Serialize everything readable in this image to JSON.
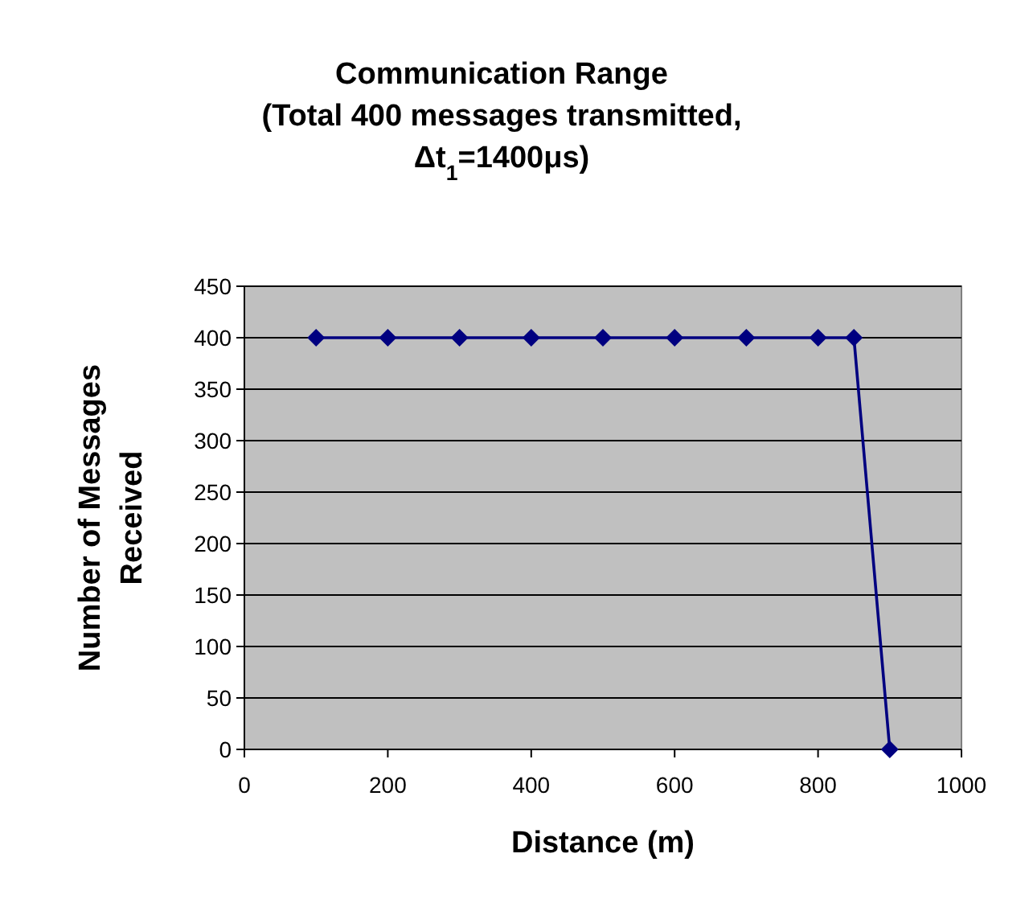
{
  "chart_data": {
    "type": "line",
    "title": "Communication Range\n(Total 400 messages transmitted,\nΔt$_{1}$=1400μs)",
    "xlabel": "Distance (m)",
    "ylabel": "Number of Messages\nReceived",
    "x": [
      100,
      200,
      300,
      400,
      500,
      600,
      700,
      800,
      850,
      900
    ],
    "series": [
      {
        "color": "#000080",
        "values": [
          400,
          400,
          400,
          400,
          400,
          400,
          400,
          400,
          400,
          0
        ]
      }
    ],
    "xlim": [
      0,
      1000
    ],
    "xticks": [
      0,
      200,
      400,
      600,
      800,
      1000
    ],
    "ylim": [
      0,
      450
    ],
    "yticks": [
      0,
      50,
      100,
      150,
      200,
      250,
      300,
      350,
      400,
      450
    ],
    "grid": "y",
    "marker": "diamond",
    "line_style": "solid"
  }
}
